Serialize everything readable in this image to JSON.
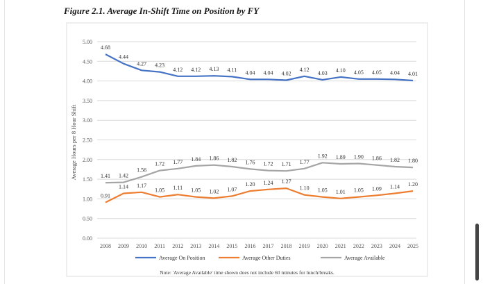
{
  "figure": {
    "title": "Figure 2.1. Average In-Shift Time on Position by FY",
    "note": "Note: 'Average Available' time shown does not include 60 minutes for lunch/breaks."
  },
  "chart_data": {
    "type": "line",
    "title": "Figure 2.1. Average In-Shift Time on Position by FY",
    "xlabel": "",
    "ylabel": "Average Hours per 8 Hour Shift",
    "ylim": [
      0,
      5
    ],
    "yticks": [
      "0.00",
      "0.50",
      "1.00",
      "1.50",
      "2.00",
      "2.50",
      "3.00",
      "3.50",
      "4.00",
      "4.50",
      "5.00"
    ],
    "grid": true,
    "legend_position": "bottom",
    "x": [
      "2008",
      "2009",
      "2010",
      "2011",
      "2012",
      "2013",
      "2014",
      "2015",
      "2016",
      "2017",
      "2018",
      "2019",
      "2020",
      "2021",
      "2022",
      "2023",
      "2024",
      "2025"
    ],
    "series": [
      {
        "name": "Average On Position",
        "color": "#4472c4",
        "values": [
          4.68,
          4.44,
          4.27,
          4.23,
          4.12,
          4.12,
          4.13,
          4.11,
          4.04,
          4.04,
          4.02,
          4.12,
          4.03,
          4.1,
          4.05,
          4.05,
          4.04,
          4.01
        ],
        "labels": [
          "4.68",
          "4.44",
          "4.27",
          "4.23",
          "4.12",
          "4.12",
          "4.13",
          "4.11",
          "4.04",
          "4.04",
          "4.02",
          "4.12",
          "4.03",
          "4.10",
          "4.05",
          "4.05",
          "4.04",
          "4.01"
        ]
      },
      {
        "name": "Average Other Duties",
        "color": "#ed7d31",
        "values": [
          0.91,
          1.14,
          1.17,
          1.05,
          1.11,
          1.05,
          1.02,
          1.07,
          1.2,
          1.24,
          1.27,
          1.1,
          1.05,
          1.01,
          1.05,
          1.09,
          1.14,
          1.2
        ],
        "labels": [
          "0.91",
          "1.14",
          "1.17",
          "1.05",
          "1.11",
          "1.05",
          "1.02",
          "1.07",
          "1.20",
          "1.24",
          "1.27",
          "1.10",
          "1.05",
          "1.01",
          "1.05",
          "1.09",
          "1.14",
          "1.20"
        ]
      },
      {
        "name": "Average Available",
        "color": "#a5a5a5",
        "values": [
          1.41,
          1.42,
          1.56,
          1.72,
          1.77,
          1.84,
          1.86,
          1.82,
          1.76,
          1.72,
          1.71,
          1.77,
          1.92,
          1.89,
          1.9,
          1.86,
          1.82,
          1.8
        ],
        "labels": [
          "1.41",
          "1.42",
          "1.56",
          "1.72",
          "1.77",
          "1.84",
          "1.86",
          "1.82",
          "1.76",
          "1.72",
          "1.71",
          "1.77",
          "1.92",
          "1.89",
          "1.90",
          "1.86",
          "1.82",
          "1.80"
        ]
      }
    ]
  }
}
